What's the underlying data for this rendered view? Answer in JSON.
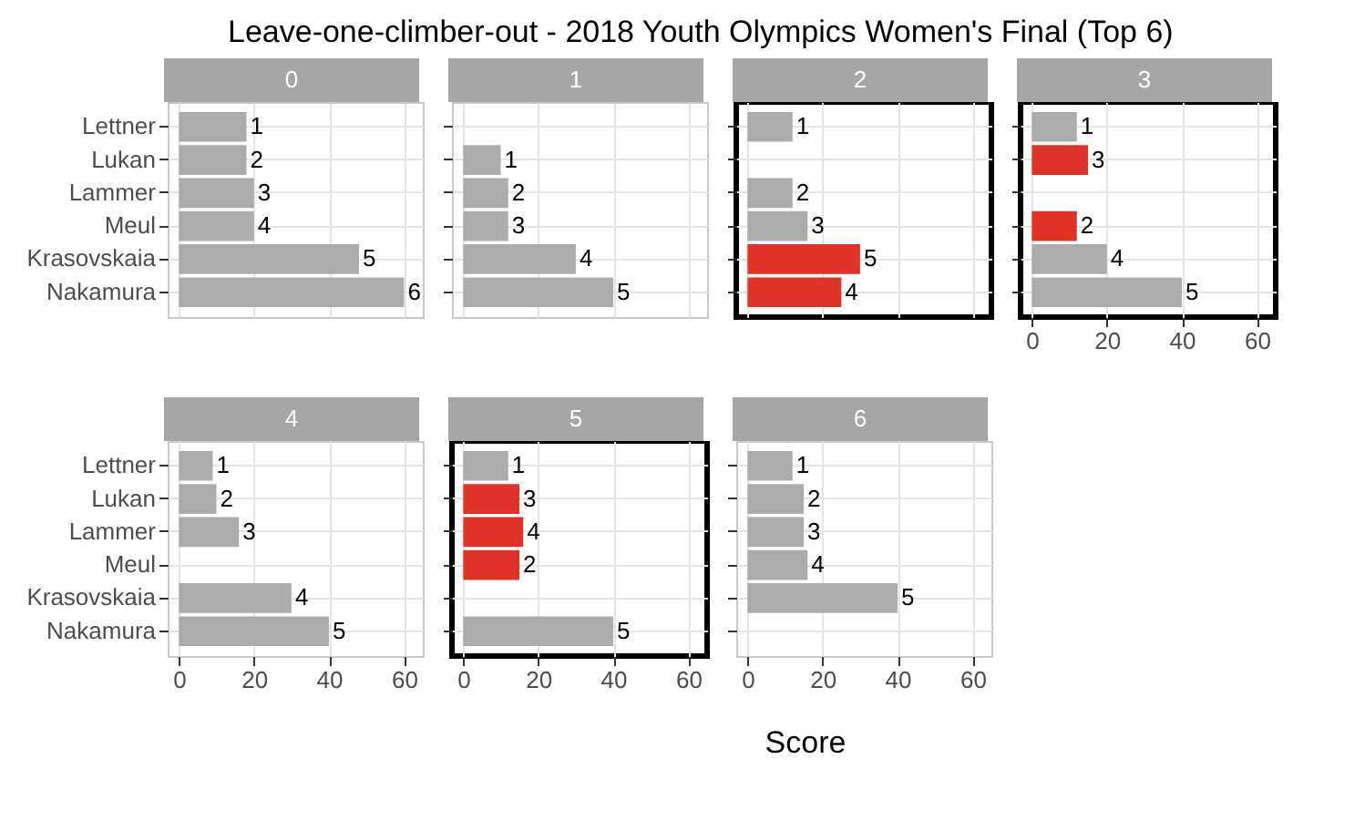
{
  "chart_data": [
    {
      "type": "bar",
      "orientation": "horizontal",
      "title": "Leave-one-climber-out - 2018 Youth Olympics Women's Final (Top 6)",
      "subtitle": "0",
      "categories": [
        "Lettner",
        "Lukan",
        "Lammer",
        "Meul",
        "Krasovskaia",
        "Nakamura"
      ],
      "values": [
        18,
        18,
        20,
        20,
        48,
        60
      ],
      "colors": [
        "#acacac",
        "#acacac",
        "#acacac",
        "#acacac",
        "#acacac",
        "#acacac"
      ],
      "xlim": [
        -3,
        65
      ],
      "xticks": [
        0,
        20,
        40,
        60
      ],
      "grid": true,
      "tick_labels": "y",
      "annotations": [
        {
          "text": "1",
          "x": 18,
          "y": "Lettner"
        },
        {
          "text": "2",
          "x": 18,
          "y": "Lukan"
        },
        {
          "text": "3",
          "x": 20,
          "y": "Lammer"
        },
        {
          "text": "4",
          "x": 20,
          "y": "Meul"
        },
        {
          "text": "5",
          "x": 48,
          "y": "Krasovskaia"
        },
        {
          "text": "6",
          "x": 60,
          "y": "Nakamura"
        }
      ]
    },
    {
      "type": "bar",
      "orientation": "horizontal",
      "subtitle": "1",
      "categories": [
        "Lettner",
        "Lukan",
        "Lammer",
        "Meul",
        "Krasovskaia",
        "Nakamura"
      ],
      "values": [
        null,
        10,
        12,
        12,
        30,
        40
      ],
      "colors": [
        "#acacac",
        "#acacac",
        "#acacac",
        "#acacac",
        "#acacac",
        "#acacac"
      ],
      "xlim": [
        -3,
        65
      ],
      "xticks": [
        0,
        20,
        40,
        60
      ],
      "grid": true,
      "tick_labels": false,
      "annotations": [
        {
          "text": "1",
          "x": 10,
          "y": "Lukan"
        },
        {
          "text": "2",
          "x": 12,
          "y": "Lammer"
        },
        {
          "text": "3",
          "x": 12,
          "y": "Meul"
        },
        {
          "text": "4",
          "x": 30,
          "y": "Krasovskaia"
        },
        {
          "text": "5",
          "x": 40,
          "y": "Nakamura"
        }
      ]
    },
    {
      "type": "bar",
      "orientation": "horizontal",
      "subtitle": "2",
      "categories": [
        "Lettner",
        "Lukan",
        "Lammer",
        "Meul",
        "Krasovskaia",
        "Nakamura"
      ],
      "values": [
        12,
        null,
        12,
        16,
        30,
        25
      ],
      "colors": [
        "#acacac",
        "#acacac",
        "#acacac",
        "#acacac",
        "#e03226",
        "#e03226"
      ],
      "xlim": [
        -3,
        65
      ],
      "xticks": [
        0,
        20,
        40,
        60
      ],
      "grid": true,
      "tick_labels": false,
      "annotations": [
        {
          "text": "1",
          "x": 12,
          "y": "Lettner"
        },
        {
          "text": "2",
          "x": 12,
          "y": "Lammer"
        },
        {
          "text": "3",
          "x": 16,
          "y": "Meul"
        },
        {
          "text": "5",
          "x": 30,
          "y": "Krasovskaia"
        },
        {
          "text": "4",
          "x": 25,
          "y": "Nakamura"
        }
      ]
    },
    {
      "type": "bar",
      "orientation": "horizontal",
      "subtitle": "3",
      "categories": [
        "Lettner",
        "Lukan",
        "Lammer",
        "Meul",
        "Krasovskaia",
        "Nakamura"
      ],
      "values": [
        12,
        15,
        null,
        12,
        20,
        40
      ],
      "colors": [
        "#acacac",
        "#e03226",
        "#acacac",
        "#e03226",
        "#acacac",
        "#acacac"
      ],
      "xlim": [
        -3,
        65
      ],
      "xticks": [
        0,
        20,
        40,
        60
      ],
      "grid": true,
      "tick_labels": "x",
      "annotations": [
        {
          "text": "1",
          "x": 12,
          "y": "Lettner"
        },
        {
          "text": "3",
          "x": 15,
          "y": "Lukan"
        },
        {
          "text": "2",
          "x": 12,
          "y": "Meul"
        },
        {
          "text": "4",
          "x": 20,
          "y": "Krasovskaia"
        },
        {
          "text": "5",
          "x": 40,
          "y": "Nakamura"
        }
      ]
    },
    {
      "type": "bar",
      "orientation": "horizontal",
      "subtitle": "4",
      "categories": [
        "Lettner",
        "Lukan",
        "Lammer",
        "Meul",
        "Krasovskaia",
        "Nakamura"
      ],
      "values": [
        9,
        10,
        16,
        null,
        30,
        40
      ],
      "colors": [
        "#acacac",
        "#acacac",
        "#acacac",
        "#acacac",
        "#acacac",
        "#acacac"
      ],
      "xlim": [
        -3,
        65
      ],
      "xticks": [
        0,
        20,
        40,
        60
      ],
      "grid": true,
      "annotations": [
        {
          "text": "1",
          "x": 9,
          "y": "Lettner"
        },
        {
          "text": "2",
          "x": 10,
          "y": "Lukan"
        },
        {
          "text": "3",
          "x": 16,
          "y": "Lammer"
        },
        {
          "text": "4",
          "x": 30,
          "y": "Krasovskaia"
        },
        {
          "text": "5",
          "x": 40,
          "y": "Nakamura"
        }
      ]
    },
    {
      "type": "bar",
      "orientation": "horizontal",
      "subtitle": "5",
      "xlabel": "Score",
      "categories": [
        "Lettner",
        "Lukan",
        "Lammer",
        "Meul",
        "Krasovskaia",
        "Nakamura"
      ],
      "values": [
        12,
        15,
        16,
        15,
        null,
        40
      ],
      "colors": [
        "#acacac",
        "#e03226",
        "#e03226",
        "#e03226",
        "#acacac",
        "#acacac"
      ],
      "xlim": [
        -3,
        65
      ],
      "xticks": [
        0,
        20,
        40,
        60
      ],
      "grid": true,
      "tick_labels": "x",
      "annotations": [
        {
          "text": "1",
          "x": 12,
          "y": "Lettner"
        },
        {
          "text": "3",
          "x": 15,
          "y": "Lukan"
        },
        {
          "text": "4",
          "x": 16,
          "y": "Lammer"
        },
        {
          "text": "2",
          "x": 15,
          "y": "Meul"
        },
        {
          "text": "5",
          "x": 40,
          "y": "Nakamura"
        }
      ]
    },
    {
      "type": "bar",
      "orientation": "horizontal",
      "subtitle": "6",
      "categories": [
        "Lettner",
        "Lukan",
        "Lammer",
        "Meul",
        "Krasovskaia",
        "Nakamura"
      ],
      "values": [
        12,
        15,
        15,
        16,
        40,
        null
      ],
      "colors": [
        "#acacac",
        "#acacac",
        "#acacac",
        "#acacac",
        "#acacac",
        "#acacac"
      ],
      "xlim": [
        -3,
        65
      ],
      "xticks": [
        0,
        20,
        40,
        60
      ],
      "grid": true,
      "tick_labels": "x",
      "annotations": [
        {
          "text": "1",
          "x": 12,
          "y": "Lettner"
        },
        {
          "text": "2",
          "x": 15,
          "y": "Lukan"
        },
        {
          "text": "3",
          "x": 15,
          "y": "Lammer"
        },
        {
          "text": "4",
          "x": 16,
          "y": "Meul"
        },
        {
          "text": "5",
          "x": 40,
          "y": "Krasovskaia"
        }
      ]
    }
  ]
}
